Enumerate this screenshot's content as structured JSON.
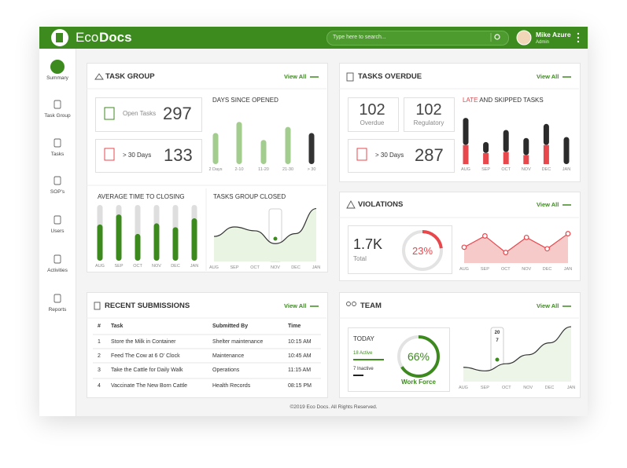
{
  "header": {
    "logo_a": "Eco",
    "logo_b": "Docs",
    "search_placeholder": "Type here to search...",
    "user_name": "Mike Azure",
    "user_role": "Admin"
  },
  "sidebar": [
    "Summary",
    "Task Group",
    "Tasks",
    "SOP's",
    "Users",
    "Activities",
    "Reports"
  ],
  "task_group": {
    "title": "TASK GROUP",
    "view_all": "View All",
    "open_tasks_label": "Open Tasks",
    "open_tasks": 297,
    "over30_label": "> 30 Days",
    "over30": 133,
    "days_since_opened": {
      "title": "DAYS SINCE OPENED",
      "categories": [
        "2 Days",
        "2-10",
        "11-20",
        "21-30",
        "> 30"
      ],
      "values": [
        62,
        84,
        48,
        74,
        62
      ],
      "colors": [
        "#a3cc8f",
        "#a3cc8f",
        "#a3cc8f",
        "#a3cc8f",
        "#333333"
      ],
      "ylim": [
        0,
        100
      ]
    },
    "avg_time_to_closing": {
      "title": "AVERAGE TIME TO CLOSING",
      "categories": [
        "AUG",
        "SEP",
        "OCT",
        "NOV",
        "DEC",
        "JAN"
      ],
      "values": [
        65,
        83,
        48,
        67,
        60,
        76
      ],
      "color": "#3c8a1e",
      "ylim": [
        0,
        100
      ]
    },
    "tasks_group_closed": {
      "title": "TASKS GROUP CLOSED",
      "categories": [
        "AUG",
        "SEP",
        "OCT",
        "NOV",
        "DEC",
        "JAN"
      ],
      "values": [
        45,
        62,
        55,
        32,
        50,
        95
      ],
      "ylim": [
        0,
        100
      ]
    }
  },
  "tasks_overdue": {
    "title": "TASKS OVERDUE",
    "view_all": "View All",
    "overdue": 102,
    "overdue_label": "Overdue",
    "regulatory": 102,
    "regulatory_label": "Regulatory",
    "over30_label": "> 30 Days",
    "over30": 287,
    "late_skipped": {
      "title_late": "LATE",
      "title_rest": "AND SKIPPED TASKS",
      "categories": [
        "AUG",
        "SEP",
        "OCT",
        "NOV",
        "DEC",
        "JAN"
      ],
      "late": [
        38,
        22,
        24,
        18,
        38,
        0
      ],
      "skipped": [
        54,
        22,
        44,
        34,
        42,
        54
      ],
      "late_color": "#e8474c",
      "skipped_color": "#2b2b2b",
      "ylim": [
        0,
        100
      ]
    }
  },
  "violations": {
    "title": "VIOLATIONS",
    "view_all": "View All",
    "total": "1.7K",
    "total_label": "Total",
    "percent": 23,
    "percent_label": "23%",
    "color": "#e8474c",
    "chart": {
      "categories": [
        "AUG",
        "SEP",
        "OCT",
        "NOV",
        "DEC",
        "JAN"
      ],
      "values": [
        42,
        72,
        28,
        68,
        38,
        78
      ],
      "ylim": [
        0,
        100
      ]
    }
  },
  "recent_submissions": {
    "title": "RECENT SUBMISSIONS",
    "view_all": "View All",
    "columns": [
      "#",
      "Task",
      "Submitted By",
      "Time"
    ],
    "rows": [
      [
        1,
        "Store the Milk in Container",
        "Shelter maintenance",
        "10:15 AM"
      ],
      [
        2,
        "Feed The Cow at 6 O' Clock",
        "Maintenance",
        "10:45 AM"
      ],
      [
        3,
        "Take the Cattle for Daily Walk",
        "Operations",
        "11:15 AM"
      ],
      [
        4,
        "Vaccinate The New Born Cattle",
        "Health Records",
        "08:15 PM"
      ]
    ]
  },
  "team": {
    "title": "TEAM",
    "view_all": "View All",
    "today": "TODAY",
    "active": "18 Active",
    "inactive": "7 Inactive",
    "percent": 66,
    "percent_label": "66%",
    "donut_label": "Work Force",
    "color": "#3c8a1e",
    "chart": {
      "categories": [
        "AUG",
        "SEP",
        "OCT",
        "NOV",
        "DEC",
        "JAN"
      ],
      "values": [
        24,
        18,
        30,
        45,
        65,
        92
      ],
      "ylim": [
        0,
        100
      ],
      "tooltip": [
        20,
        7
      ]
    }
  },
  "footer": "©2019 Eco Docs. All Rights Reserved."
}
